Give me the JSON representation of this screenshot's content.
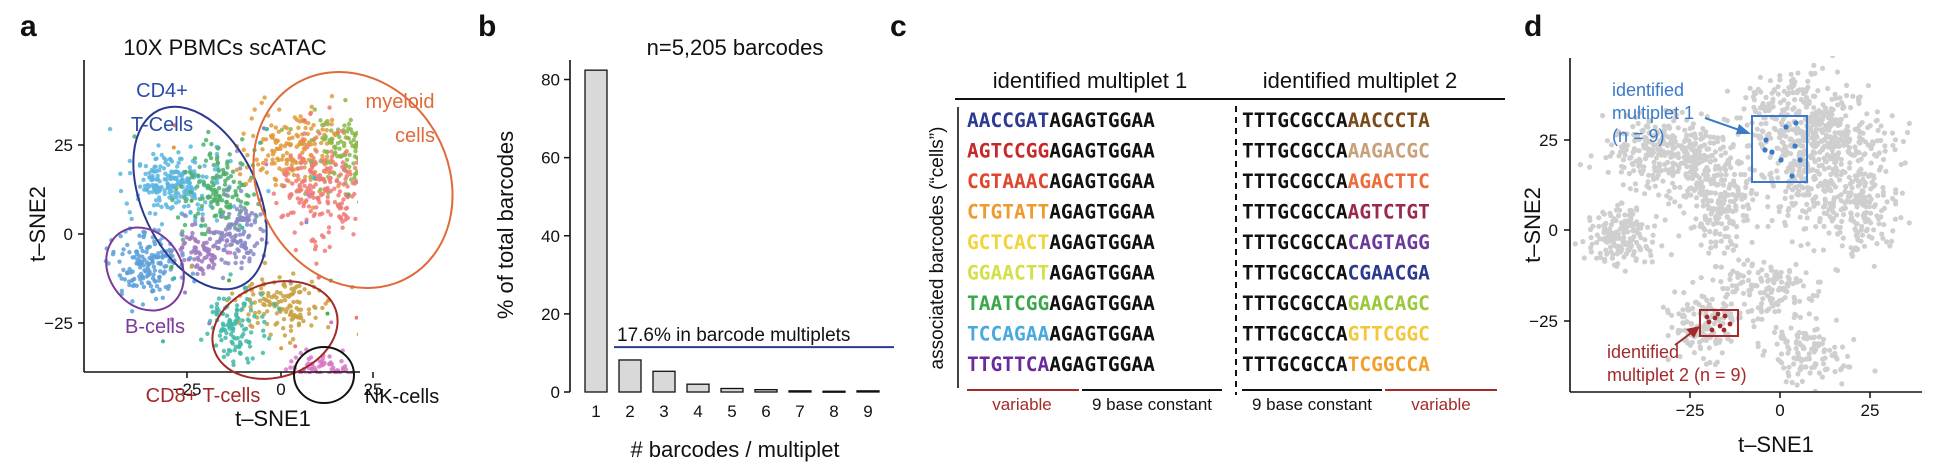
{
  "panels": {
    "a": {
      "label": "a",
      "title": "10X PBMCs scATAC",
      "xlabel": "t–SNE1",
      "ylabel": "t–SNE2",
      "xticks": [
        "−25",
        "0",
        "25"
      ],
      "yticks": [
        "25",
        "0",
        "−25"
      ],
      "cluster_labels": [
        {
          "text": "CD4+",
          "color": "#2b4ba8"
        },
        {
          "text": "T-Cells",
          "color": "#2b4ba8"
        },
        {
          "text": "myeloid",
          "color": "#e06a3a"
        },
        {
          "text": "cells",
          "color": "#e06a3a"
        },
        {
          "text": "B-cells",
          "color": "#7a3a9a"
        },
        {
          "text": "CD8+ T-cells",
          "color": "#a32a2a"
        },
        {
          "text": "NK-cells",
          "color": "#111111"
        }
      ]
    },
    "b": {
      "label": "b",
      "title": "n=5,205 barcodes",
      "annotation": "17.6% in barcode multiplets"
    },
    "c": {
      "label": "c",
      "header1": "identified multiplet 1",
      "header2": "identified multiplet 2",
      "ylabel": "associated barcodes (“cells”)",
      "m1_rows": [
        {
          "variable": "AACCGAT",
          "color": "#2b3a8f"
        },
        {
          "variable": "AGTCCGG",
          "color": "#c8282a"
        },
        {
          "variable": "CGTAAAC",
          "color": "#e0452e"
        },
        {
          "variable": "CTGTATT",
          "color": "#ee9a2c"
        },
        {
          "variable": "GCTCACT",
          "color": "#f2d43a"
        },
        {
          "variable": "GGAACTT",
          "color": "#d4e04a"
        },
        {
          "variable": "TAATCGG",
          "color": "#3aa84a"
        },
        {
          "variable": "TCCAGAA",
          "color": "#48a8e0"
        },
        {
          "variable": "TTGTTCA",
          "color": "#6a2a9a"
        }
      ],
      "m1_constant": "AGAGTGGAA",
      "m2_constant": "TTTGCGCCA",
      "m2_rows": [
        {
          "variable": "AACCCTA",
          "color": "#7a4a1a"
        },
        {
          "variable": "AAGACGC",
          "color": "#c8a07a"
        },
        {
          "variable": "AGACTTC",
          "color": "#ee6a3a"
        },
        {
          "variable": "AGTCTGT",
          "color": "#9a2a4a"
        },
        {
          "variable": "CAGTAGG",
          "color": "#6a3a9a"
        },
        {
          "variable": "CGAACGA",
          "color": "#2b3a8f"
        },
        {
          "variable": "GAACAGC",
          "color": "#9ac83a"
        },
        {
          "variable": "GTTCGGC",
          "color": "#f2c83a"
        },
        {
          "variable": "TCGGCCA",
          "color": "#f0a02a"
        }
      ],
      "footer_variable": "variable",
      "footer_constant": "9 base constant",
      "footer_color": "#a32a2a"
    },
    "d": {
      "label": "d",
      "xlabel": "t–SNE1",
      "ylabel": "t–SNE2",
      "xticks": [
        "−25",
        "0",
        "25"
      ],
      "yticks": [
        "25",
        "0",
        "−25"
      ],
      "annotation1": [
        "identified",
        "multiplet 1",
        "(n = 9)"
      ],
      "annotation1_color": "#3a7ac8",
      "annotation2": [
        "identified",
        "multiplet 2 (n = 9)"
      ],
      "annotation2_color": "#a32a2a"
    }
  },
  "chart_data": [
    {
      "type": "bar",
      "title": "n=5,205 barcodes",
      "xlabel": "# barcodes / multiplet",
      "ylabel": "% of total barcodes",
      "categories": [
        "1",
        "2",
        "3",
        "4",
        "5",
        "6",
        "7",
        "8",
        "9"
      ],
      "values": [
        82.4,
        8.2,
        5.3,
        2.0,
        0.9,
        0.6,
        0.3,
        0.2,
        0.3
      ],
      "ylim": [
        0,
        85
      ],
      "yticks": [
        0,
        20,
        40,
        60,
        80
      ],
      "reference_line": 11.5,
      "reference_label": "17.6% in barcode multiplets",
      "bar_color": "#d9d9d9",
      "line_color": "#2b3a8f"
    }
  ]
}
